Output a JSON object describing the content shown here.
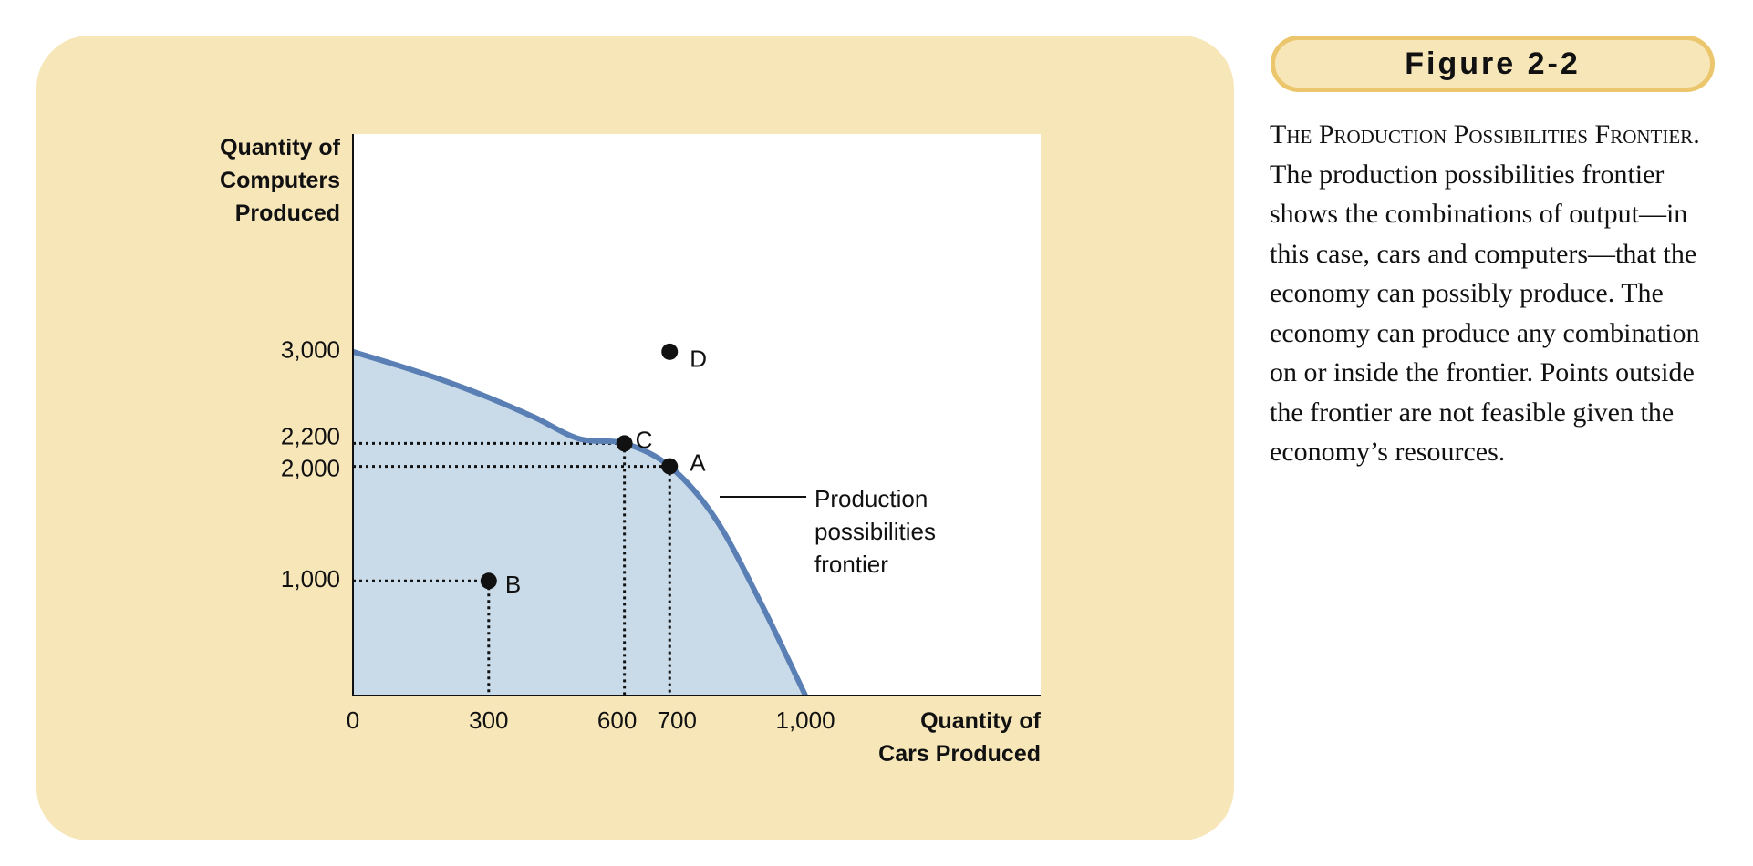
{
  "figure_label": "Figure 2-2",
  "caption": {
    "title": "The Production Possibilities Frontier.",
    "body": "The production possibilities frontier shows the combinations of output—in this case, cars and computers—that the economy can possibly produce. The economy can produce any combination on or inside the frontier. Points outside the frontier are not feasible given the economy’s resources."
  },
  "colors": {
    "panel": "#f6e6b8",
    "badge_border": "#ebc66c",
    "frontier_line": "#5a7fb5",
    "frontier_fill": "#c9dbe8",
    "plot_background": "#ffffff"
  },
  "chart_data": {
    "type": "line",
    "xlabel": "Quantity of Cars Produced",
    "ylabel": "Quantity of Computers Produced",
    "xlim": [
      0,
      1520
    ],
    "ylim": [
      0,
      4900
    ],
    "x_ticks": [
      {
        "value": 0,
        "label": "0"
      },
      {
        "value": 300,
        "label": "300"
      },
      {
        "value": 600,
        "label": "600"
      },
      {
        "value": 700,
        "label": "700"
      },
      {
        "value": 1000,
        "label": "1,000"
      }
    ],
    "y_ticks": [
      {
        "value": 1000,
        "label": "1,000"
      },
      {
        "value": 2000,
        "label": "2,000"
      },
      {
        "value": 2200,
        "label": "2,200"
      },
      {
        "value": 3000,
        "label": "3,000"
      }
    ],
    "frontier": {
      "label": "Production possibilities frontier",
      "x": [
        0,
        100,
        200,
        300,
        400,
        500,
        600,
        700,
        800,
        900,
        1000
      ],
      "y": [
        3000,
        2880,
        2750,
        2600,
        2430,
        2240,
        2200,
        2000,
        1550,
        820,
        0
      ]
    },
    "points": [
      {
        "label": "A",
        "x": 700,
        "y": 2000
      },
      {
        "label": "B",
        "x": 300,
        "y": 1000
      },
      {
        "label": "C",
        "x": 600,
        "y": 2200
      },
      {
        "label": "D",
        "x": 700,
        "y": 3000
      }
    ],
    "grid": false,
    "legend": "none"
  }
}
